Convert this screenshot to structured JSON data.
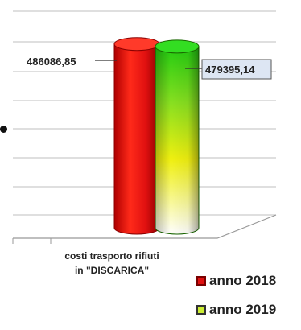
{
  "chart_data": {
    "type": "bar",
    "style": "3d-cylinder",
    "categories": [
      "costi trasporto rifiuti\nin \"DISCARICA\""
    ],
    "series": [
      {
        "name": "anno 2018",
        "values": [
          486086.85
        ],
        "value_label": "486086,85",
        "color": "#e01010"
      },
      {
        "name": "anno 2019",
        "values": [
          479395.14
        ],
        "value_label": "479395,14",
        "color": "#22cc11"
      }
    ],
    "grid": true,
    "legend_position": "bottom-right"
  },
  "legend": [
    {
      "label": "anno 2018",
      "swatch_fill": "#e01010",
      "swatch_border": "#7a0000"
    },
    {
      "label": "anno 2019",
      "swatch_fill": "#ccee33",
      "swatch_border": "#333333"
    }
  ]
}
